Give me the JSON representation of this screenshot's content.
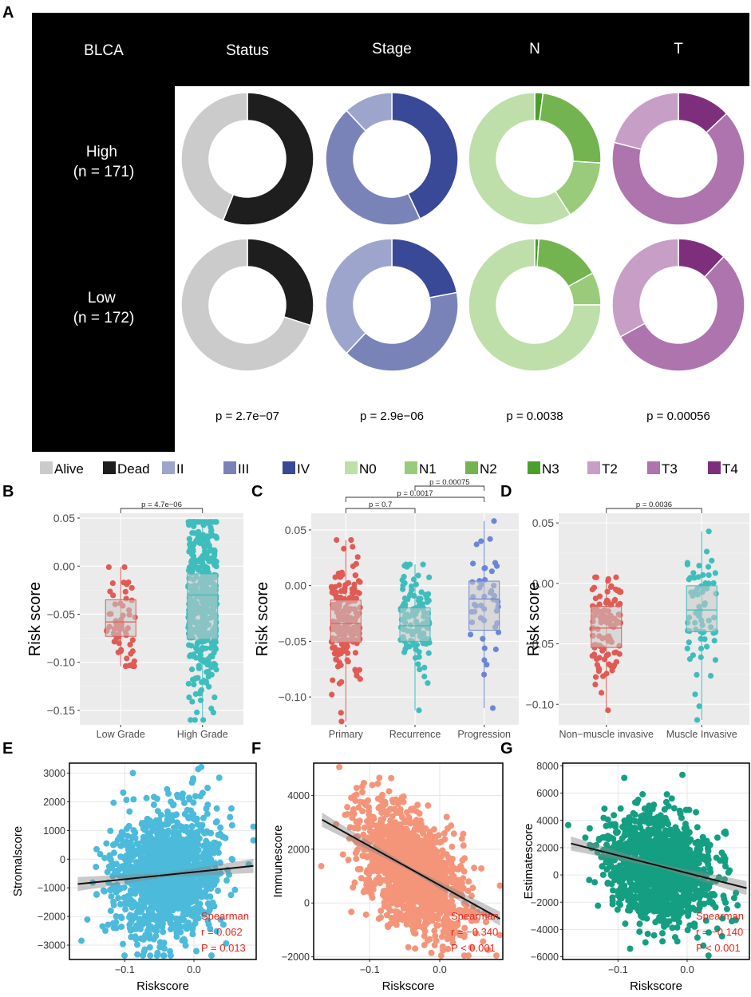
{
  "panel_labels": {
    "a": "A",
    "b": "B",
    "c": "C",
    "d": "D",
    "e": "E",
    "f": "F",
    "g": "G"
  },
  "colors": {
    "Alive": "#cbcbcb",
    "Dead": "#1e1e1e",
    "II": "#9da5cd",
    "III": "#7983b8",
    "IV": "#3a4898",
    "N0": "#bedeaa",
    "N1": "#99cb7b",
    "N2": "#73b451",
    "N3": "#4ba02c",
    "T2": "#c79ec6",
    "T3": "#ad74ad",
    "T4": "#7e2f7c",
    "red_points": "#e05b54",
    "teal_points": "#3fbdbd",
    "blue_points": "#6c86d7",
    "E_points": "#4cbadb",
    "F_points": "#f4957a",
    "G_points": "#149e82",
    "annot": "#e8251b"
  },
  "chart_data": [
    {
      "id": "A",
      "type": "pie",
      "title": "BLCA",
      "columns": [
        "Status",
        "Stage",
        "N",
        "T"
      ],
      "rows": [
        "High\n(n = 171)",
        "Low\n(n = 172)"
      ],
      "row_lines": [
        [
          "High",
          "(n = 171)"
        ],
        [
          "Low",
          "(n = 172)"
        ]
      ],
      "p_values": [
        "p = 2.7e−07",
        "p = 2.9e−06",
        "p = 0.0038",
        "p = 0.00056"
      ],
      "donuts": [
        [
          {
            "labels": [
              "Dead",
              "Alive"
            ],
            "values": [
              56,
              44
            ]
          },
          {
            "labels": [
              "IV",
              "III",
              "II"
            ],
            "values": [
              43,
              45,
              12
            ]
          },
          {
            "labels": [
              "N3",
              "N2",
              "N1",
              "N0"
            ],
            "values": [
              2,
              24,
              15,
              59
            ]
          },
          {
            "labels": [
              "T4",
              "T3",
              "T2"
            ],
            "values": [
              13,
              66,
              21
            ]
          }
        ],
        [
          {
            "labels": [
              "Dead",
              "Alive"
            ],
            "values": [
              30,
              70
            ]
          },
          {
            "labels": [
              "IV",
              "III",
              "II"
            ],
            "values": [
              22,
              40,
              38
            ]
          },
          {
            "labels": [
              "N3",
              "N2",
              "N1",
              "N0"
            ],
            "values": [
              1,
              16,
              8,
              75
            ]
          },
          {
            "labels": [
              "T4",
              "T3",
              "T2"
            ],
            "values": [
              12,
              55,
              33
            ]
          }
        ]
      ],
      "legend": [
        "Alive",
        "Dead",
        "II",
        "III",
        "IV",
        "N0",
        "N1",
        "N2",
        "N3",
        "T2",
        "T3",
        "T4"
      ]
    },
    {
      "id": "B",
      "type": "box",
      "ylabel": "Risk score",
      "ylim": [
        -0.165,
        0.055
      ],
      "yticks": [
        "0.05",
        "0.00",
        "−0.05",
        "−0.10",
        "−0.15"
      ],
      "ytick_values": [
        0.05,
        0,
        -0.05,
        -0.1,
        -0.15
      ],
      "categories": [
        "Low Grade",
        "High Grade"
      ],
      "boxes": [
        {
          "q1": -0.073,
          "median": -0.058,
          "q3": -0.035,
          "min": -0.104,
          "max": -0.001,
          "n": 60
        },
        {
          "q1": -0.076,
          "median": -0.03,
          "q3": -0.008,
          "min": -0.16,
          "max": 0.046,
          "n": 420
        }
      ],
      "comparisons": [
        {
          "pair": [
            0,
            1
          ],
          "label": "p = 4.7e−06"
        }
      ]
    },
    {
      "id": "C",
      "type": "box",
      "ylabel": "Risk score",
      "ylim": [
        -0.125,
        0.065
      ],
      "yticks": [
        "0.05",
        "0.00",
        "−0.05",
        "−0.10"
      ],
      "ytick_values": [
        0.05,
        0,
        -0.05,
        -0.1
      ],
      "categories": [
        "Primary",
        "Recurrence",
        "Progression"
      ],
      "boxes": [
        {
          "q1": -0.051,
          "median": -0.034,
          "q3": -0.013,
          "min": -0.122,
          "max": 0.041,
          "n": 180
        },
        {
          "q1": -0.05,
          "median": -0.036,
          "q3": -0.02,
          "min": -0.112,
          "max": 0.019,
          "n": 120
        },
        {
          "q1": -0.04,
          "median": -0.012,
          "q3": 0.004,
          "min": -0.11,
          "max": 0.058,
          "n": 45
        }
      ],
      "comparisons": [
        {
          "pair": [
            0,
            1
          ],
          "label": "p = 0.7"
        },
        {
          "pair": [
            0,
            2
          ],
          "label": "p = 0.0017"
        },
        {
          "pair": [
            1,
            2
          ],
          "label": "p = 0.00075"
        }
      ]
    },
    {
      "id": "D",
      "type": "box",
      "ylabel": "Risk score",
      "ylim": [
        -0.117,
        0.058
      ],
      "yticks": [
        "0.05",
        "0.00",
        "−0.05",
        "−0.10"
      ],
      "ytick_values": [
        0.05,
        0,
        -0.05,
        -0.1
      ],
      "categories": [
        "Non−muscle invasive",
        "Muscle Invasive"
      ],
      "boxes": [
        {
          "q1": -0.053,
          "median": -0.037,
          "q3": -0.019,
          "min": -0.105,
          "max": 0.005,
          "n": 110
        },
        {
          "q1": -0.04,
          "median": -0.022,
          "q3": -0.002,
          "min": -0.113,
          "max": 0.043,
          "n": 70
        }
      ],
      "comparisons": [
        {
          "pair": [
            0,
            1
          ],
          "label": "p = 0.0036"
        }
      ]
    },
    {
      "id": "E",
      "type": "scatter",
      "xlabel": "Riskscore",
      "ylabel": "Stromalscore",
      "xlim": [
        -0.18,
        0.09
      ],
      "ylim": [
        -3500,
        3350
      ],
      "xticks": [
        "−0.1",
        "0.0"
      ],
      "xtick_values": [
        -0.1,
        0
      ],
      "yticks": [
        "3000",
        "2000",
        "1000",
        "0",
        "−1000",
        "−2000",
        "−3000"
      ],
      "ytick_values": [
        3000,
        2000,
        1000,
        0,
        -1000,
        -2000,
        -3000
      ],
      "fit_line": {
        "slope": 2500,
        "intercept": -450
      },
      "cloud": {
        "x_center": -0.04,
        "x_sd": 0.038,
        "y_center": -550,
        "y_sd": 1100,
        "n": 1400
      },
      "annotation": [
        "Spearman",
        "r = 0.062",
        "P = 0.013"
      ]
    },
    {
      "id": "F",
      "type": "scatter",
      "xlabel": "Riskscore",
      "ylabel": "Immunescore",
      "xlim": [
        -0.18,
        0.09
      ],
      "ylim": [
        -2100,
        5200
      ],
      "xticks": [
        "−0.1",
        "0.0"
      ],
      "xtick_values": [
        -0.1,
        0
      ],
      "yticks": [
        "4000",
        "2000",
        "0",
        "−2000"
      ],
      "ytick_values": [
        4000,
        2000,
        0,
        -2000
      ],
      "fit_line": {
        "slope": -14500,
        "intercept": 660
      },
      "cloud": {
        "x_center": -0.04,
        "x_sd": 0.038,
        "y_center": 1200,
        "y_sd": 1000,
        "n": 1400
      },
      "annotation": [
        "Spearman",
        "r = −0.340",
        "P < 0.001"
      ]
    },
    {
      "id": "G",
      "type": "scatter",
      "xlabel": "Riskscore",
      "ylabel": "Estimatescore",
      "xlim": [
        -0.18,
        0.09
      ],
      "ylim": [
        -6200,
        8200
      ],
      "xticks": [
        "−0.1",
        "0.0"
      ],
      "xtick_values": [
        -0.1,
        0
      ],
      "yticks": [
        "8000",
        "6000",
        "4000",
        "2000",
        "0",
        "−2000",
        "−4000",
        "−6000"
      ],
      "ytick_values": [
        8000,
        6000,
        4000,
        2000,
        0,
        -2000,
        -4000,
        -6000
      ],
      "fit_line": {
        "slope": -12900,
        "intercept": 140
      },
      "cloud": {
        "x_center": -0.04,
        "x_sd": 0.038,
        "y_center": 500,
        "y_sd": 1900,
        "n": 1400
      },
      "annotation": [
        "Spearman",
        "r = −0.140",
        "P < 0.001"
      ]
    }
  ]
}
